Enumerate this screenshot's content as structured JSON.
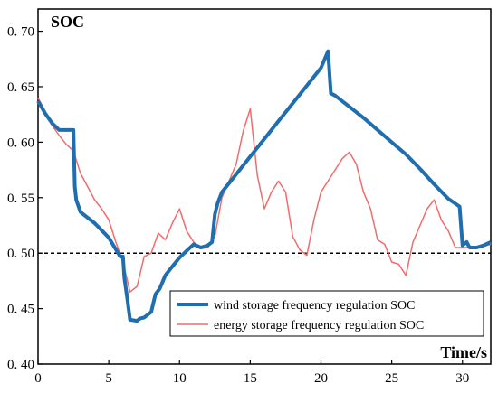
{
  "chart_data": {
    "type": "line",
    "title": "",
    "xlabel": "Time/s",
    "ylabel": "SOC",
    "xlim": [
      0,
      32
    ],
    "ylim": [
      0.4,
      0.72
    ],
    "x_ticks": [
      "0",
      "5",
      "10",
      "15",
      "20",
      "25",
      "30"
    ],
    "y_ticks": [
      "0. 40",
      "0. 45",
      "0. 50",
      "0. 55",
      "0. 60",
      "0. 65",
      "0. 70"
    ],
    "y_tick_values": [
      0.4,
      0.45,
      0.5,
      0.55,
      0.6,
      0.65,
      0.7
    ],
    "grid": false,
    "legend_position": "bottom-right",
    "reference_line": {
      "y": 0.5,
      "style": "dashed",
      "color": "#000000"
    },
    "series": [
      {
        "name": "wind storage frequency regulation SOC",
        "color": "#1f6fb0",
        "x": [
          0,
          0.5,
          1,
          1.5,
          2,
          2.5,
          2.6,
          2.7,
          3,
          4,
          5,
          5.8,
          6,
          6.1,
          6.3,
          6.5,
          7,
          7.2,
          7.5,
          8,
          8.3,
          8.6,
          9,
          9.5,
          10,
          10.5,
          11,
          11.5,
          12,
          12.3,
          12.5,
          12.7,
          13,
          14,
          15,
          16,
          17,
          18,
          19,
          20,
          20.5,
          20.7,
          21,
          22,
          23,
          24,
          25,
          26,
          27,
          28,
          29,
          29.8,
          30,
          30.3,
          30.5,
          31,
          31.5,
          32
        ],
        "values": [
          0.637,
          0.626,
          0.617,
          0.611,
          0.611,
          0.611,
          0.56,
          0.548,
          0.537,
          0.527,
          0.514,
          0.497,
          0.497,
          0.478,
          0.46,
          0.44,
          0.439,
          0.441,
          0.442,
          0.447,
          0.463,
          0.468,
          0.48,
          0.488,
          0.496,
          0.502,
          0.508,
          0.505,
          0.507,
          0.51,
          0.535,
          0.545,
          0.555,
          0.571,
          0.587,
          0.603,
          0.619,
          0.635,
          0.651,
          0.667,
          0.682,
          0.644,
          0.642,
          0.632,
          0.622,
          0.611,
          0.6,
          0.589,
          0.576,
          0.562,
          0.549,
          0.542,
          0.507,
          0.51,
          0.505,
          0.505,
          0.507,
          0.51
        ]
      },
      {
        "name": "energy storage frequency regulation SOC",
        "color": "#f26b6b",
        "x": [
          0,
          0.5,
          1,
          1.5,
          2,
          2.5,
          3,
          3.5,
          4,
          4.5,
          5,
          5.5,
          6,
          6.5,
          7,
          7.5,
          8,
          8.5,
          9,
          9.5,
          10,
          10.5,
          11,
          11.5,
          12,
          12.5,
          13,
          13.5,
          14,
          14.5,
          15,
          15.5,
          16,
          16.5,
          17,
          17.5,
          18,
          18.5,
          19,
          19.5,
          20,
          20.5,
          21,
          21.5,
          22,
          22.5,
          23,
          23.5,
          24,
          24.5,
          25,
          25.5,
          26,
          26.5,
          27,
          27.5,
          28,
          28.5,
          29,
          29.5,
          30,
          30.5,
          31,
          31.5,
          32
        ],
        "values": [
          0.64,
          0.628,
          0.615,
          0.606,
          0.598,
          0.592,
          0.572,
          0.56,
          0.548,
          0.54,
          0.53,
          0.51,
          0.492,
          0.465,
          0.47,
          0.497,
          0.5,
          0.518,
          0.512,
          0.527,
          0.54,
          0.52,
          0.51,
          0.504,
          0.505,
          0.515,
          0.55,
          0.565,
          0.58,
          0.61,
          0.63,
          0.57,
          0.54,
          0.555,
          0.565,
          0.555,
          0.515,
          0.503,
          0.498,
          0.53,
          0.555,
          0.565,
          0.575,
          0.585,
          0.591,
          0.58,
          0.555,
          0.54,
          0.512,
          0.508,
          0.492,
          0.49,
          0.48,
          0.51,
          0.525,
          0.54,
          0.548,
          0.53,
          0.52,
          0.505,
          0.505,
          0.505,
          0.506,
          0.506,
          0.508
        ]
      }
    ]
  }
}
